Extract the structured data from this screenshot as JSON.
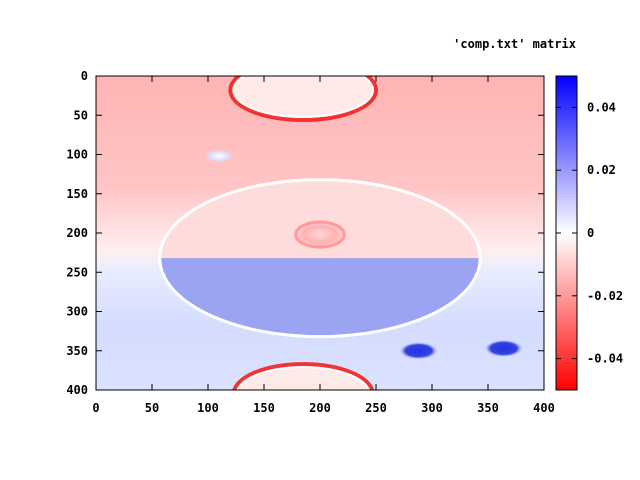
{
  "chart_data": {
    "type": "heatmap",
    "title": "",
    "key_label": "'comp.txt' matrix",
    "xlabel": "",
    "ylabel": "",
    "xlim": [
      0,
      400
    ],
    "ylim": [
      0,
      400
    ],
    "y_axis_direction": "top-to-bottom",
    "x_ticks": [
      "0",
      "50",
      "100",
      "150",
      "200",
      "250",
      "300",
      "350",
      "400"
    ],
    "y_ticks": [
      "0",
      "50",
      "100",
      "150",
      "200",
      "250",
      "300",
      "350",
      "400"
    ],
    "colorbar": {
      "range": [
        -0.05,
        0.05
      ],
      "ticks": [
        {
          "value": 0.04,
          "label": "0.04"
        },
        {
          "value": 0.02,
          "label": "0.02"
        },
        {
          "value": 0,
          "label": "0"
        },
        {
          "value": -0.02,
          "label": "-0.02"
        },
        {
          "value": -0.04,
          "label": "-0.04"
        }
      ],
      "colors": {
        "low": "#ff0000",
        "mid": "#ffffff",
        "high": "#0000ff"
      }
    },
    "features": [
      {
        "shape": "field-gradient",
        "description": "negative (red) in upper half, positive (blue) in lower half"
      },
      {
        "shape": "ring",
        "cx": 185,
        "cy": 18,
        "rx": 65,
        "ry": 38,
        "edge": "red",
        "inner_value": -0.005
      },
      {
        "shape": "blob",
        "cx": 110,
        "cy": 102,
        "rx": 14,
        "ry": 9,
        "value": 0.01
      },
      {
        "shape": "ring",
        "cx": 200,
        "cy": 232,
        "rx": 143,
        "ry": 100,
        "edge": "white"
      },
      {
        "shape": "blob",
        "cx": 200,
        "cy": 202,
        "rx": 27,
        "ry": 20,
        "value": -0.02
      },
      {
        "shape": "blob",
        "cx": 288,
        "cy": 350,
        "rx": 17,
        "ry": 11,
        "value": 0.04
      },
      {
        "shape": "blob",
        "cx": 364,
        "cy": 347,
        "rx": 17,
        "ry": 11,
        "value": 0.045
      },
      {
        "shape": "ring",
        "cx": 185,
        "cy": 405,
        "rx": 62,
        "ry": 38,
        "edge": "red"
      }
    ]
  }
}
